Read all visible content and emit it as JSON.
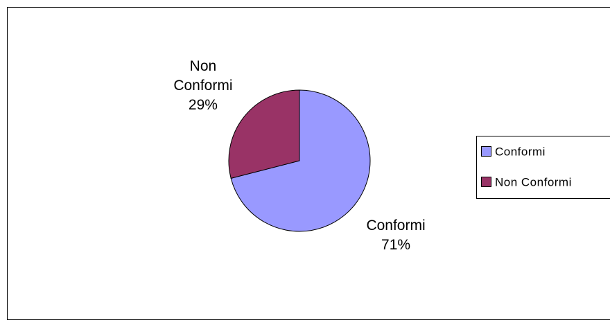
{
  "chart_data": {
    "type": "pie",
    "categories": [
      "Conformi",
      "Non Conformi"
    ],
    "values": [
      71,
      29
    ],
    "value_labels": [
      "71%",
      "29%"
    ],
    "colors": [
      "#9999ff",
      "#993366"
    ],
    "legend": "right"
  }
}
